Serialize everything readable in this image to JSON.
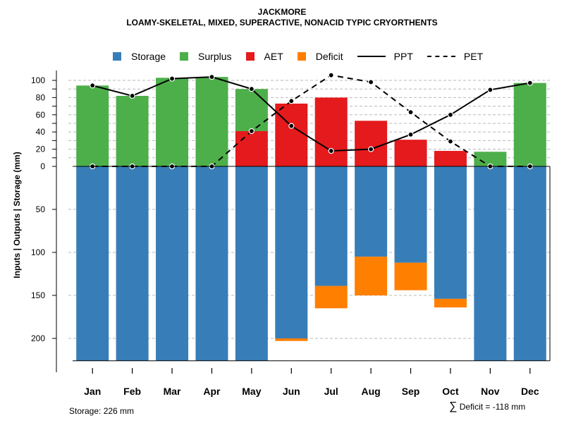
{
  "chart_data": {
    "type": "bar",
    "title": "JACKMORE",
    "subtitle": "LOAMY-SKELETAL, MIXED, SUPERACTIVE, NONACID TYPIC CRYORTHENTS",
    "ylabel": "Inputs | Outputs | Storage    (mm)",
    "ylim": [
      -226,
      102
    ],
    "y_ticks_upper": [
      0,
      20,
      40,
      60,
      80,
      100
    ],
    "y_ticks_lower": [
      50,
      100,
      150,
      200
    ],
    "categories": [
      "Jan",
      "Feb",
      "Mar",
      "Apr",
      "May",
      "Jun",
      "Jul",
      "Aug",
      "Sep",
      "Oct",
      "Nov",
      "Dec"
    ],
    "series": [
      {
        "name": "Storage",
        "kind": "bar-down",
        "color": "#377EB8",
        "values": [
          226,
          226,
          226,
          226,
          226,
          200,
          139,
          105,
          112,
          154,
          226,
          226
        ]
      },
      {
        "name": "Surplus",
        "kind": "bar-up",
        "color": "#4DAF4A",
        "values": [
          94,
          82,
          103,
          104,
          49,
          0,
          0,
          0,
          0,
          0,
          17,
          97
        ]
      },
      {
        "name": "AET",
        "kind": "bar-up",
        "color": "#E41A1C",
        "values": [
          0,
          0,
          0,
          0,
          41,
          73,
          80,
          53,
          31,
          18,
          0,
          0
        ]
      },
      {
        "name": "Deficit",
        "kind": "bar-down-stacked",
        "color": "#FF7F00",
        "values": [
          0,
          0,
          0,
          0,
          0,
          3,
          26,
          45,
          32,
          10,
          0,
          0
        ]
      },
      {
        "name": "PPT",
        "kind": "line",
        "style": "solid",
        "color": "#000000",
        "values": [
          94,
          82,
          102,
          104,
          90,
          47,
          18,
          20,
          37,
          60,
          89,
          97
        ]
      },
      {
        "name": "PET",
        "kind": "line",
        "style": "dashed",
        "color": "#000000",
        "values": [
          0,
          0,
          0,
          0,
          41,
          76,
          106,
          98,
          63,
          29,
          0,
          0
        ]
      }
    ],
    "legend": [
      "Storage",
      "Surplus",
      "AET",
      "Deficit",
      "PPT",
      "PET"
    ],
    "legend_position": "top",
    "grid": true
  },
  "footer": {
    "storage_text": "Storage: 226 mm",
    "deficit_symbol": "∑",
    "deficit_text": "Deficit = -118 mm"
  }
}
